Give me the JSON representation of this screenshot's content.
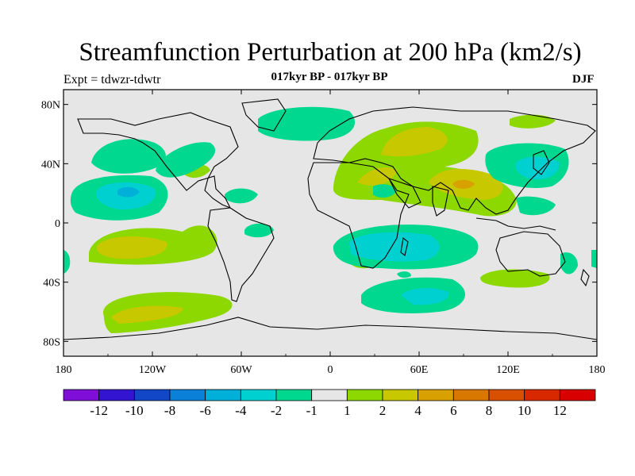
{
  "title": "Streamfunction Perturbation at 200 hPa (km2/s)",
  "subtitle": "017kyr BP - 017kyr BP",
  "left_label": "Expt = tdwzr-tdwtr",
  "right_label": "DJF",
  "map": {
    "lon_ticks": [
      "180",
      "120W",
      "60W",
      "0",
      "60E",
      "120E",
      "180"
    ],
    "lat_ticks": [
      "80N",
      "40N",
      "0",
      "40S",
      "80S"
    ],
    "background_color": "#e6e6e6"
  },
  "colorbar": {
    "colors": [
      "#7f0fd8",
      "#3314d0",
      "#1248c8",
      "#0a80d8",
      "#00b0d8",
      "#00d0d0",
      "#00d890",
      "#e6e6e6",
      "#8cd800",
      "#c8c800",
      "#d8a000",
      "#d87800",
      "#d85000",
      "#d82800",
      "#d80000"
    ],
    "labels": [
      "-12",
      "-10",
      "-8",
      "-6",
      "-4",
      "-2",
      "-1",
      "1",
      "2",
      "4",
      "6",
      "8",
      "10",
      "12"
    ]
  }
}
